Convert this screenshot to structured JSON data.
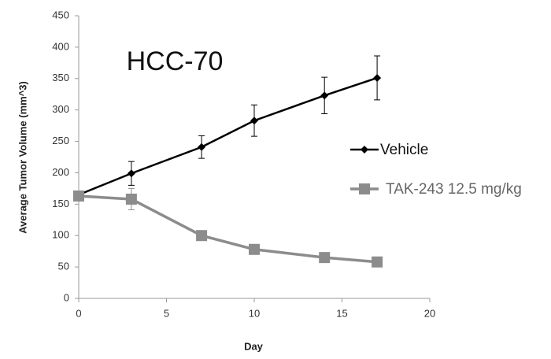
{
  "chart_data": {
    "type": "line",
    "title": "HCC-70",
    "x_label": "Day",
    "y_label": "Average Tumor Volume (mm^3)",
    "xlim": [
      0,
      20
    ],
    "xticks": [
      0,
      5,
      10,
      15,
      20
    ],
    "ylim": [
      0,
      450
    ],
    "yticks": [
      0,
      50,
      100,
      150,
      200,
      250,
      300,
      350,
      400,
      450
    ],
    "grid": false,
    "legend": "right",
    "x": [
      0,
      3,
      7,
      10,
      14,
      17
    ],
    "series": [
      {
        "name": "Vehicle",
        "color": "#000000",
        "marker": "diamond",
        "values": [
          165,
          199,
          241,
          283,
          323,
          351
        ],
        "errors": [
          5,
          19,
          18,
          25,
          29,
          35
        ]
      },
      {
        "name": "TAK-243 12.5 mg/kg",
        "color": "#8c8c8c",
        "marker": "square",
        "values": [
          163,
          158,
          100,
          78,
          65,
          58
        ],
        "errors": [
          6,
          17,
          3,
          3,
          3,
          3
        ]
      }
    ]
  }
}
